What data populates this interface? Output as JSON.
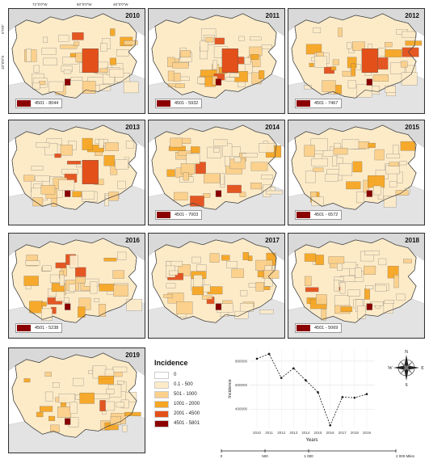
{
  "map": {
    "coordinates": {
      "top_axis": [
        "72°0'0\"W",
        "60°0'0\"W",
        "48°0'0\"W"
      ],
      "left_axis": [
        "0°0'0\"",
        "10°0'0\"S"
      ]
    },
    "panels": [
      {
        "year": "2010",
        "max_label": "4501 - 8044"
      },
      {
        "year": "2011",
        "max_label": "4501 - 5932"
      },
      {
        "year": "2012",
        "max_label": "4501 - 7467"
      },
      {
        "year": "2013",
        "max_label": ""
      },
      {
        "year": "2014",
        "max_label": "4501 - 7003"
      },
      {
        "year": "2015",
        "max_label": "4501 - 6572"
      },
      {
        "year": "2016",
        "max_label": "4501 - 5238"
      },
      {
        "year": "2017",
        "max_label": ""
      },
      {
        "year": "2018",
        "max_label": "4501 - 5069"
      },
      {
        "year": "2019",
        "max_label": ""
      }
    ]
  },
  "legend": {
    "title": "Incidence",
    "classes": [
      {
        "label": "0",
        "color": "#ffffff"
      },
      {
        "label": "0.1 - 500",
        "color": "#fdebc8"
      },
      {
        "label": "501 - 1000",
        "color": "#fbd08a"
      },
      {
        "label": "1001 - 2000",
        "color": "#f6a623"
      },
      {
        "label": "2001 - 4500",
        "color": "#e4501a"
      },
      {
        "label": "4501 - 5801",
        "color": "#8b0000"
      }
    ]
  },
  "compass": {
    "n": "N",
    "s": "S",
    "e": "E",
    "w": "W"
  },
  "scale": {
    "labels": [
      "0",
      "500",
      "1 000",
      "2 000 Miles"
    ]
  },
  "chart_data": {
    "type": "line",
    "x": [
      "2010",
      "2011",
      "2012",
      "2013",
      "2014",
      "2015",
      "2016",
      "2017",
      "2018",
      "2019"
    ],
    "values": [
      820000,
      860000,
      660000,
      740000,
      640000,
      540000,
      265000,
      500000,
      495000,
      525000
    ],
    "ylabel": "Incidence",
    "xlabel": "Years",
    "yticks": [
      400000,
      600000,
      800000
    ],
    "ylim": [
      240000,
      900000
    ],
    "grid": true
  }
}
